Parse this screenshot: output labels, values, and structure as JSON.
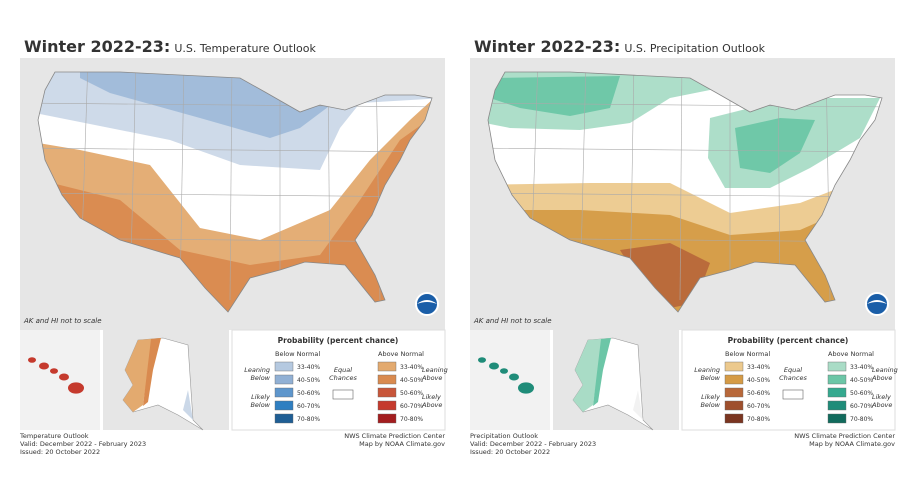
{
  "panels": [
    {
      "title_bold": "Winter 2022-23:",
      "title": "U.S. Temperature Outlook",
      "note": "AK and HI not to scale",
      "legend": {
        "title": "Probability (percent chance)",
        "below_header": "Below Normal",
        "above_header": "Above Normal",
        "leaning_below": [
          "Leaning",
          "Below"
        ],
        "likely_below": [
          "Likely",
          "Below"
        ],
        "equal_chances": [
          "Equal",
          "Chances"
        ],
        "leaning_above": [
          "Leaning",
          "Above"
        ],
        "likely_above": [
          "Likely",
          "Above"
        ],
        "ranges": [
          "33-40%",
          "40-50%",
          "50-60%",
          "60-70%",
          "70-80%"
        ],
        "below_colors": [
          "#b5c9e0",
          "#91b0d4",
          "#5e96cc",
          "#2f7fc1",
          "#1f5e94"
        ],
        "above_colors": [
          "#e3aa6f",
          "#d98a4f",
          "#c8563a",
          "#c53a2d",
          "#a31d1f"
        ]
      },
      "footer": {
        "name": "Temperature Outlook",
        "valid": "Valid: December 2022 - February 2023",
        "issued": "Issued: 20 October 2022",
        "credit1": "NWS Climate Prediction Center",
        "credit2": "Map by NOAA Climate.gov"
      }
    },
    {
      "title_bold": "Winter 2022-23:",
      "title": "U.S. Precipitation Outlook",
      "note": "AK and HI not to scale",
      "legend": {
        "title": "Probability (percent chance)",
        "below_header": "Below Normal",
        "above_header": "Above Normal",
        "leaning_below": [
          "Leaning",
          "Below"
        ],
        "likely_below": [
          "Likely",
          "Below"
        ],
        "equal_chances": [
          "Equal",
          "Chances"
        ],
        "leaning_above": [
          "Leaning",
          "Above"
        ],
        "likely_above": [
          "Likely",
          "Above"
        ],
        "ranges": [
          "33-40%",
          "40-50%",
          "50-60%",
          "60-70%",
          "70-80%"
        ],
        "below_colors": [
          "#ecc98d",
          "#d59b46",
          "#b8683a",
          "#9e4f2d",
          "#7a3520"
        ],
        "above_colors": [
          "#a9dcc6",
          "#6cc6a7",
          "#35a98f",
          "#1f8c79",
          "#126b5d"
        ]
      },
      "footer": {
        "name": "Precipitation Outlook",
        "valid": "Valid: December 2022 - February 2023",
        "issued": "Issued: 20 October 2022",
        "credit1": "NWS Climate Prediction Center",
        "credit2": "Map by NOAA Climate.gov"
      }
    }
  ]
}
